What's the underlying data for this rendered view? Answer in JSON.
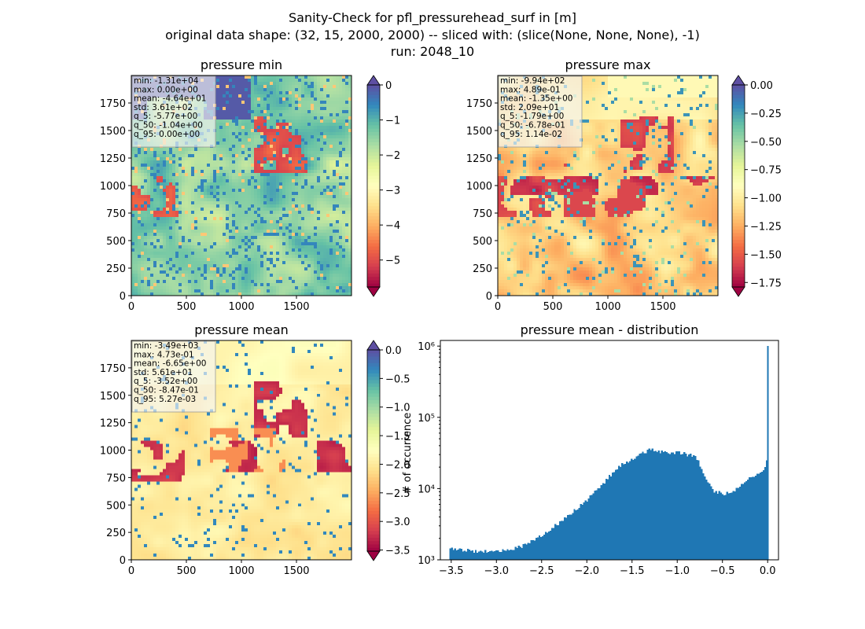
{
  "figure": {
    "suptitle_lines": [
      "Sanity-Check for pfl_pressurehead_surf in [m]",
      "original data shape: (32, 15, 2000, 2000) -- sliced with: (slice(None, None, None), -1)",
      "run: 2048_10"
    ]
  },
  "chart_data": [
    {
      "type": "heatmap",
      "title": "pressure min",
      "x_ticks": [
        0,
        500,
        1000,
        1500
      ],
      "y_ticks": [
        0,
        250,
        500,
        750,
        1000,
        1250,
        1500,
        1750
      ],
      "extent": [
        0,
        2000
      ],
      "colormap": "Spectral",
      "colorbar": {
        "ticks": [
          0,
          -1,
          -2,
          -3,
          -4,
          -5
        ],
        "tick_labels": [
          "0",
          "−1",
          "−2",
          "−3",
          "−4",
          "−5"
        ],
        "range": [
          -5.77,
          0
        ],
        "extend": "both"
      },
      "stats": [
        "min: -1.31e+04",
        "max: 0.00e+00",
        "mean: -4.64e+01",
        "std: 3.61e+02",
        "q_5: -5.77e+00",
        "q_50: -1.04e+00",
        "q_95: 0.00e+00"
      ]
    },
    {
      "type": "heatmap",
      "title": "pressure max",
      "x_ticks": [
        0,
        500,
        1000,
        1500
      ],
      "y_ticks": [
        0,
        250,
        500,
        750,
        1000,
        1250,
        1500,
        1750
      ],
      "extent": [
        0,
        2000
      ],
      "colormap": "Spectral",
      "colorbar": {
        "ticks": [
          0,
          -0.25,
          -0.5,
          -0.75,
          -1.0,
          -1.25,
          -1.5,
          -1.75
        ],
        "tick_labels": [
          "0.00",
          "−0.25",
          "−0.50",
          "−0.75",
          "−1.00",
          "−1.25",
          "−1.50",
          "−1.75"
        ],
        "range": [
          -1.79,
          0
        ],
        "extend": "both"
      },
      "stats": [
        "min: -9.94e+02",
        "max: 4.89e-01",
        "mean: -1.35e+00",
        "std: 2.09e+01",
        "q_5: -1.79e+00",
        "q_50: -6.78e-01",
        "q_95: 1.14e-02"
      ]
    },
    {
      "type": "heatmap",
      "title": "pressure mean",
      "x_ticks": [
        0,
        500,
        1000,
        1500
      ],
      "y_ticks": [
        0,
        250,
        500,
        750,
        1000,
        1250,
        1500,
        1750
      ],
      "extent": [
        0,
        2000
      ],
      "colormap": "Spectral",
      "colorbar": {
        "ticks": [
          0,
          -0.5,
          -1.0,
          -1.5,
          -2.0,
          -2.5,
          -3.0,
          -3.5
        ],
        "tick_labels": [
          "0.0",
          "−0.5",
          "−1.0",
          "−1.5",
          "−2.0",
          "−2.5",
          "−3.0",
          "−3.5"
        ],
        "range": [
          -3.52,
          0
        ],
        "extend": "both"
      },
      "stats": [
        "min: -3.49e+03",
        "max: 4.73e-01",
        "mean: -6.65e+00",
        "std: 5.61e+01",
        "q_5: -3.52e+00",
        "q_50: -8.47e-01",
        "q_95: 5.27e-03"
      ]
    },
    {
      "type": "bar",
      "title": "pressure mean - distribution",
      "ylabel": "# of occurrence",
      "xlabel": "",
      "y_scale": "log",
      "ylim": [
        1000,
        1200000
      ],
      "xlim": [
        -3.62,
        0.12
      ],
      "x_ticks": [
        -3.5,
        -3.0,
        -2.5,
        -2.0,
        -1.5,
        -1.0,
        -0.5,
        0.0
      ],
      "x_tick_labels": [
        "−3.5",
        "−3.0",
        "−2.5",
        "−2.0",
        "−1.5",
        "−1.0",
        "−0.5",
        "0.0"
      ],
      "y_ticks": [
        1000,
        10000,
        100000,
        1000000
      ],
      "y_tick_labels": [
        "10³",
        "10⁴",
        "10⁵",
        "10⁶"
      ],
      "bin_width": 0.0176,
      "bins": {
        "x": [
          -3.5,
          -3.25,
          -3.0,
          -2.75,
          -2.5,
          -2.25,
          -2.0,
          -1.85,
          -1.7,
          -1.6,
          -1.5,
          -1.4,
          -1.3,
          -1.2,
          -1.1,
          -1.0,
          -0.9,
          -0.8,
          -0.7,
          -0.6,
          -0.5,
          -0.4,
          -0.3,
          -0.2,
          -0.1,
          -0.05,
          -0.01,
          0.0
        ],
        "y": [
          1450,
          1320,
          1320,
          1500,
          2200,
          3800,
          7000,
          11000,
          18000,
          23000,
          25000,
          31000,
          36000,
          33000,
          31000,
          33000,
          30000,
          28000,
          14000,
          9300,
          8400,
          8600,
          12000,
          14000,
          16000,
          18000,
          27000,
          1000000
        ]
      },
      "color": "#1f77b4"
    }
  ]
}
